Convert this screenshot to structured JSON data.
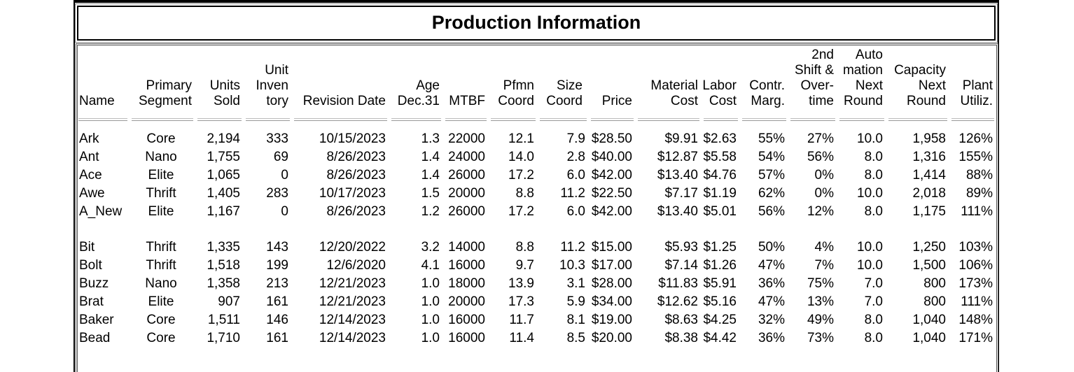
{
  "title": "Production Information",
  "table": {
    "headers": [
      [
        "Name"
      ],
      [
        "Primary",
        "Segment"
      ],
      [
        "Units",
        "Sold"
      ],
      [
        "Unit",
        "Inven",
        "tory"
      ],
      [
        "Revision Date"
      ],
      [
        "Age",
        "Dec.31"
      ],
      [
        "MTBF"
      ],
      [
        "Pfmn",
        "Coord"
      ],
      [
        "Size",
        "Coord"
      ],
      [
        "Price"
      ],
      [
        "Material",
        "Cost"
      ],
      [
        "Labor",
        "Cost"
      ],
      [
        "Contr.",
        "Marg."
      ],
      [
        "2nd",
        "Shift &",
        "Over-",
        "time"
      ],
      [
        "Auto",
        "mation",
        "Next",
        "Round"
      ],
      [
        "Capacity",
        "Next",
        "Round"
      ],
      [
        "Plant",
        "Utiliz."
      ]
    ],
    "groups": [
      {
        "rows": [
          [
            "Ark",
            "Core",
            "2,194",
            "333",
            "10/15/2023",
            "1.3",
            "22000",
            "12.1",
            "7.9",
            "$28.50",
            "$9.91",
            "$2.63",
            "55%",
            "27%",
            "10.0",
            "1,958",
            "126%"
          ],
          [
            "Ant",
            "Nano",
            "1,755",
            "69",
            "8/26/2023",
            "1.4",
            "24000",
            "14.0",
            "2.8",
            "$40.00",
            "$12.87",
            "$5.58",
            "54%",
            "56%",
            "8.0",
            "1,316",
            "155%"
          ],
          [
            "Ace",
            "Elite",
            "1,065",
            "0",
            "8/26/2023",
            "1.4",
            "26000",
            "17.2",
            "6.0",
            "$42.00",
            "$13.40",
            "$4.76",
            "57%",
            "0%",
            "8.0",
            "1,414",
            "88%"
          ],
          [
            "Awe",
            "Thrift",
            "1,405",
            "283",
            "10/17/2023",
            "1.5",
            "20000",
            "8.8",
            "11.2",
            "$22.50",
            "$7.17",
            "$1.19",
            "62%",
            "0%",
            "10.0",
            "2,018",
            "89%"
          ],
          [
            "A_New",
            "Elite",
            "1,167",
            "0",
            "8/26/2023",
            "1.2",
            "26000",
            "17.2",
            "6.0",
            "$42.00",
            "$13.40",
            "$5.01",
            "56%",
            "12%",
            "8.0",
            "1,175",
            "111%"
          ]
        ]
      },
      {
        "rows": [
          [
            "Bit",
            "Thrift",
            "1,335",
            "143",
            "12/20/2022",
            "3.2",
            "14000",
            "8.8",
            "11.2",
            "$15.00",
            "$5.93",
            "$1.25",
            "50%",
            "4%",
            "10.0",
            "1,250",
            "103%"
          ],
          [
            "Bolt",
            "Thrift",
            "1,518",
            "199",
            "12/6/2020",
            "4.1",
            "16000",
            "9.7",
            "10.3",
            "$17.00",
            "$7.14",
            "$1.26",
            "47%",
            "7%",
            "10.0",
            "1,500",
            "106%"
          ],
          [
            "Buzz",
            "Nano",
            "1,358",
            "213",
            "12/21/2023",
            "1.0",
            "18000",
            "13.9",
            "3.1",
            "$28.00",
            "$11.83",
            "$5.91",
            "36%",
            "75%",
            "7.0",
            "800",
            "173%"
          ],
          [
            "Brat",
            "Elite",
            "907",
            "161",
            "12/21/2023",
            "1.0",
            "20000",
            "17.3",
            "5.9",
            "$34.00",
            "$12.62",
            "$5.16",
            "47%",
            "13%",
            "7.0",
            "800",
            "111%"
          ],
          [
            "Baker",
            "Core",
            "1,511",
            "146",
            "12/14/2023",
            "1.0",
            "16000",
            "11.7",
            "8.1",
            "$19.00",
            "$8.63",
            "$4.25",
            "32%",
            "49%",
            "8.0",
            "1,040",
            "148%"
          ],
          [
            "Bead",
            "Core",
            "1,710",
            "161",
            "12/14/2023",
            "1.0",
            "16000",
            "11.4",
            "8.5",
            "$20.00",
            "$8.38",
            "$4.42",
            "36%",
            "73%",
            "8.0",
            "1,040",
            "171%"
          ]
        ]
      }
    ]
  }
}
